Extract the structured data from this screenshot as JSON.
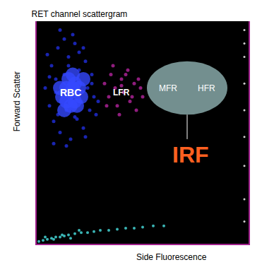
{
  "chart_data": {
    "type": "scatter",
    "title": "RET channel scattergram",
    "x_label": "Side Fluorescence",
    "y_label": "Forward Scatter",
    "xlim": [
      0,
      100
    ],
    "ylim": [
      0,
      100
    ],
    "tick_labels": false,
    "grid": false,
    "series": [
      {
        "color": "#1e2cd0",
        "x": [
          4,
          6,
          7,
          8,
          9,
          10,
          11,
          12,
          13,
          14,
          15,
          16,
          17,
          18,
          19,
          20,
          21,
          22,
          23,
          24,
          25,
          26,
          27,
          28,
          5,
          8,
          11,
          14,
          17,
          20,
          23,
          26,
          29,
          9,
          13,
          18,
          22,
          6,
          10,
          15
        ],
        "y": [
          70,
          62,
          80,
          55,
          74,
          88,
          50,
          66,
          92,
          60,
          84,
          47,
          72,
          90,
          56,
          78,
          64,
          52,
          82,
          70,
          60,
          76,
          66,
          58,
          85,
          45,
          96,
          44,
          94,
          86,
          48,
          72,
          64,
          68,
          76,
          57,
          88,
          75,
          58,
          80
        ]
      },
      {
        "color": "#3548ff",
        "x": [
          12,
          14,
          16,
          18,
          20,
          13,
          15,
          17,
          19,
          21,
          14,
          16,
          18,
          11,
          22,
          17
        ],
        "y": [
          66,
          70,
          68,
          64,
          70,
          60,
          74,
          76,
          62,
          66,
          64,
          62,
          72,
          70,
          74,
          70
        ]
      },
      {
        "color": "#a0208c",
        "x": [
          32,
          34,
          35,
          37,
          38,
          40,
          41,
          43,
          44,
          46,
          47,
          49,
          36,
          39,
          42,
          45,
          48,
          33,
          50,
          40
        ],
        "y": [
          72,
          66,
          76,
          70,
          62,
          74,
          68,
          78,
          64,
          72,
          60,
          70,
          80,
          58,
          76,
          66,
          74,
          62,
          66,
          71
        ]
      },
      {
        "color": "#40c8c8",
        "x": [
          1,
          3,
          5,
          7,
          9,
          11,
          13,
          15,
          18,
          21,
          24,
          27,
          30,
          34,
          38,
          42,
          46,
          50,
          55,
          60,
          4,
          8,
          12,
          16,
          20
        ],
        "y": [
          1,
          1.5,
          2,
          2.5,
          3,
          3,
          3.5,
          4,
          4.5,
          5,
          5,
          5.5,
          6,
          6,
          6.5,
          7,
          7,
          7.5,
          8,
          8,
          3,
          2,
          4,
          2.5,
          6
        ]
      },
      {
        "color": "#e8e8e8",
        "x": [
          98,
          98,
          98,
          98,
          98,
          98,
          98,
          98,
          98
        ],
        "y": [
          96,
          90,
          84,
          72,
          60,
          48,
          35,
          20,
          10
        ]
      }
    ],
    "annotations": [
      "RBC",
      "LFR",
      "MFR",
      "HFR",
      "IRF"
    ]
  }
}
